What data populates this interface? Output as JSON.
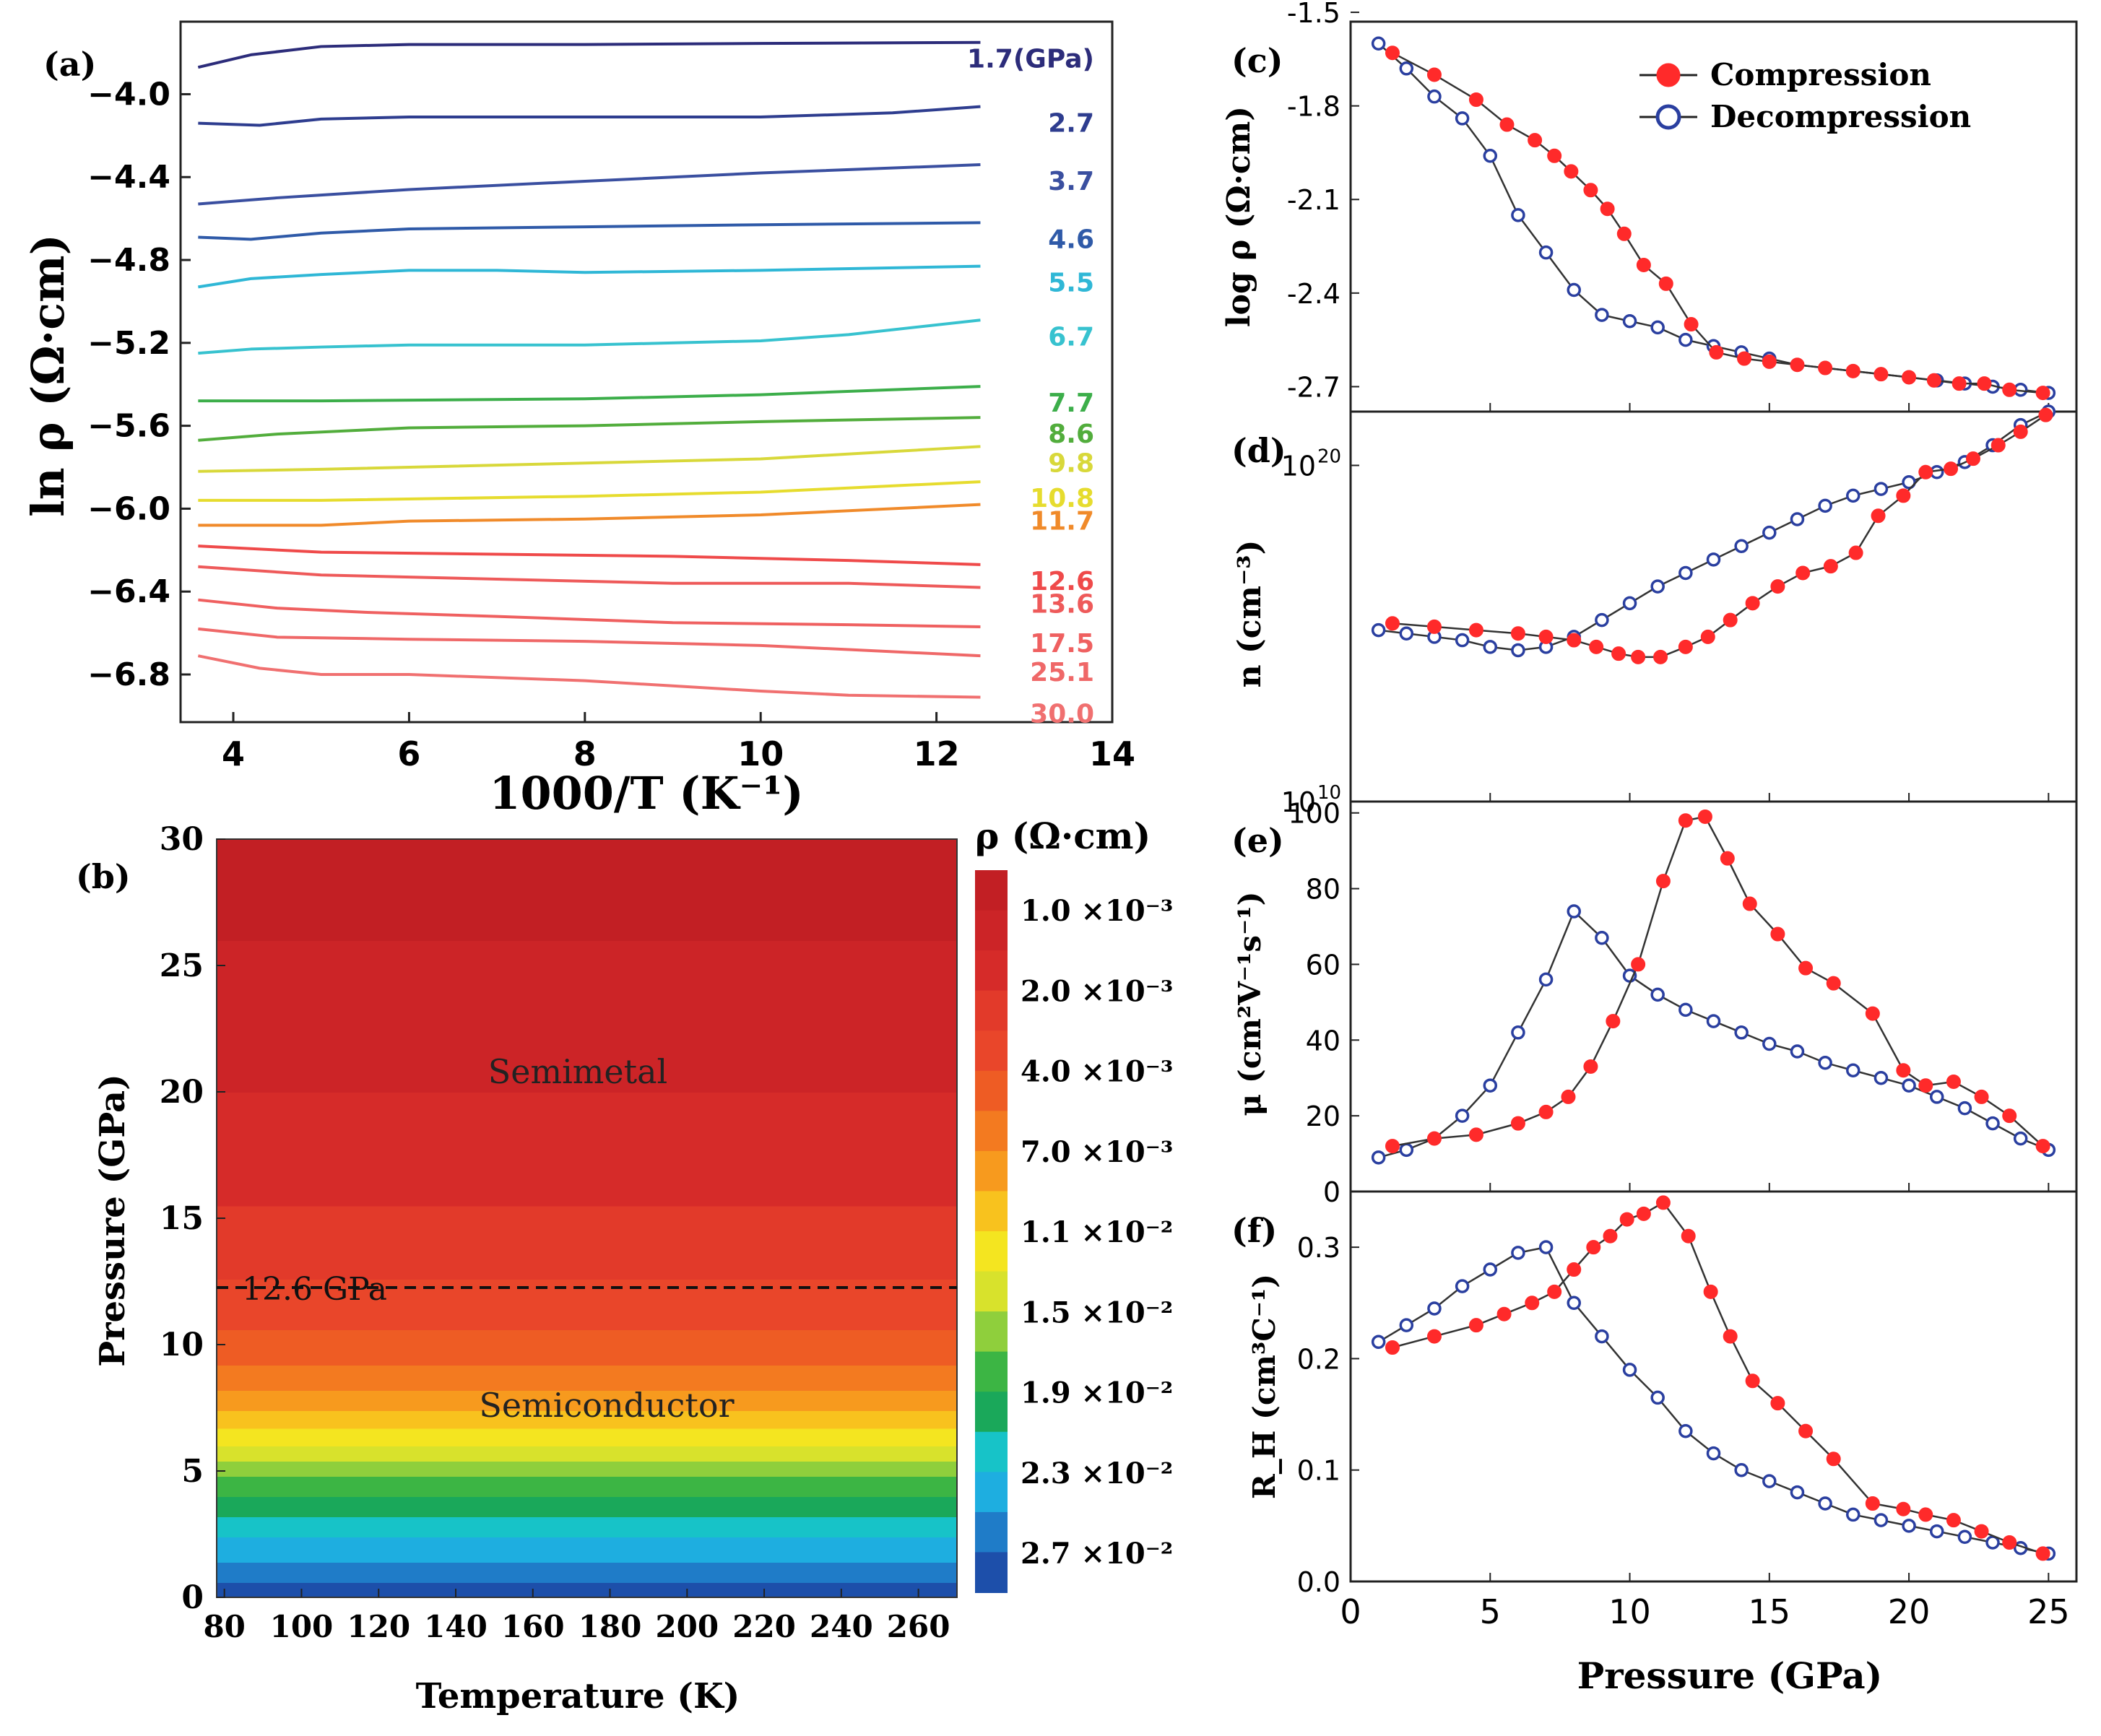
{
  "panels": {
    "a": "(a)",
    "b": "(b)",
    "c": "(c)",
    "d": "(d)",
    "e": "(e)",
    "f": "(f)"
  },
  "chart_data": [
    {
      "id": "a",
      "type": "line",
      "xlabel": "1000/T (K⁻¹)",
      "ylabel": "ln ρ (Ω·cm)",
      "xlim": [
        3.4,
        14
      ],
      "ylim": [
        -7.03,
        -3.65
      ],
      "xticks": [
        "4",
        "6",
        "8",
        "10",
        "12",
        "14"
      ],
      "yticks": [
        "−4.0",
        "−4.4",
        "−4.8",
        "−5.2",
        "−5.6",
        "−6.0",
        "−6.4",
        "−6.8"
      ],
      "ytick_values": [
        -4.0,
        -4.4,
        -4.8,
        -5.2,
        -5.6,
        -6.0,
        -6.4,
        -6.8
      ],
      "series": [
        {
          "name": "1.7(GPa)",
          "color": "#2c2c7a",
          "x": [
            3.6,
            4.2,
            5,
            6,
            8,
            10,
            12.5
          ],
          "y": [
            -3.87,
            -3.81,
            -3.77,
            -3.76,
            -3.76,
            -3.755,
            -3.75
          ]
        },
        {
          "name": "2.7",
          "color": "#2e3d8f",
          "x": [
            3.6,
            4.3,
            5,
            6,
            8,
            10,
            11.5,
            12.5
          ],
          "y": [
            -4.14,
            -4.15,
            -4.12,
            -4.11,
            -4.11,
            -4.11,
            -4.09,
            -4.06
          ]
        },
        {
          "name": "3.7",
          "color": "#3a4fa0",
          "x": [
            3.6,
            4.5,
            6,
            8,
            10,
            12.5
          ],
          "y": [
            -4.53,
            -4.5,
            -4.46,
            -4.42,
            -4.38,
            -4.34
          ]
        },
        {
          "name": "4.6",
          "color": "#2f5aa8",
          "x": [
            3.6,
            4.2,
            5,
            6,
            8,
            10,
            12.5
          ],
          "y": [
            -4.69,
            -4.7,
            -4.67,
            -4.65,
            -4.64,
            -4.63,
            -4.62
          ]
        },
        {
          "name": "5.5",
          "color": "#2fb7d6",
          "x": [
            3.6,
            4.2,
            5,
            6,
            7,
            8,
            10,
            12.5
          ],
          "y": [
            -4.93,
            -4.89,
            -4.87,
            -4.85,
            -4.85,
            -4.86,
            -4.85,
            -4.83
          ]
        },
        {
          "name": "6.7",
          "color": "#37c2cf",
          "x": [
            3.6,
            4.2,
            5,
            6,
            8,
            10,
            11,
            12.5
          ],
          "y": [
            -5.25,
            -5.23,
            -5.22,
            -5.21,
            -5.21,
            -5.19,
            -5.16,
            -5.09
          ]
        },
        {
          "name": "7.7",
          "color": "#3cae4a",
          "x": [
            3.6,
            5,
            8,
            10,
            12.5
          ],
          "y": [
            -5.48,
            -5.48,
            -5.47,
            -5.45,
            -5.41
          ]
        },
        {
          "name": "8.6",
          "color": "#52ad3c",
          "x": [
            3.6,
            4.5,
            6,
            8,
            10,
            12.5
          ],
          "y": [
            -5.67,
            -5.64,
            -5.61,
            -5.6,
            -5.58,
            -5.56
          ]
        },
        {
          "name": "9.8",
          "color": "#d8d83a",
          "x": [
            3.6,
            5,
            8,
            10,
            12.5
          ],
          "y": [
            -5.82,
            -5.81,
            -5.78,
            -5.76,
            -5.7
          ]
        },
        {
          "name": "10.8",
          "color": "#e6dc2e",
          "x": [
            3.6,
            5,
            8,
            10,
            12.5
          ],
          "y": [
            -5.96,
            -5.96,
            -5.94,
            -5.92,
            -5.87
          ]
        },
        {
          "name": "11.7",
          "color": "#f08a2a",
          "x": [
            3.6,
            5,
            6,
            8,
            10,
            12.5
          ],
          "y": [
            -6.08,
            -6.08,
            -6.06,
            -6.05,
            -6.03,
            -5.98
          ]
        },
        {
          "name": "12.6",
          "color": "#ef4a4a",
          "x": [
            3.6,
            5,
            7,
            9,
            11,
            12.5
          ],
          "y": [
            -6.18,
            -6.21,
            -6.22,
            -6.23,
            -6.25,
            -6.27
          ]
        },
        {
          "name": "13.6",
          "color": "#ee5a5a",
          "x": [
            3.6,
            5,
            7,
            9,
            11,
            12.5
          ],
          "y": [
            -6.28,
            -6.32,
            -6.34,
            -6.36,
            -6.36,
            -6.38
          ]
        },
        {
          "name": "17.5",
          "color": "#ef6060",
          "x": [
            3.6,
            4.5,
            5.5,
            7,
            9,
            11,
            12.5
          ],
          "y": [
            -6.44,
            -6.48,
            -6.5,
            -6.52,
            -6.55,
            -6.56,
            -6.57
          ]
        },
        {
          "name": "25.1",
          "color": "#ef6868",
          "x": [
            3.6,
            4.5,
            6,
            8,
            10,
            11,
            12.5
          ],
          "y": [
            -6.58,
            -6.62,
            -6.63,
            -6.64,
            -6.66,
            -6.68,
            -6.71
          ]
        },
        {
          "name": "30.0",
          "color": "#f07070",
          "x": [
            3.6,
            4.3,
            5,
            6,
            8,
            10,
            11,
            12.5
          ],
          "y": [
            -6.71,
            -6.77,
            -6.8,
            -6.8,
            -6.83,
            -6.88,
            -6.9,
            -6.91
          ]
        }
      ]
    },
    {
      "id": "b",
      "type": "heatmap",
      "xlabel": "Temperature (K)",
      "ylabel": "Pressure (GPa)",
      "xlim": [
        78,
        270
      ],
      "ylim": [
        0,
        30
      ],
      "xticks": [
        "80",
        "100",
        "120",
        "140",
        "160",
        "180",
        "200",
        "220",
        "240",
        "260"
      ],
      "yticks": [
        "0",
        "5",
        "10",
        "15",
        "20",
        "25",
        "30"
      ],
      "colorbar_title": "ρ (Ω·cm)",
      "colorbar_labels": [
        "1.0 ×10⁻³",
        "2.0 ×10⁻³",
        "4.0 ×10⁻³",
        "7.0 ×10⁻³",
        "1.1 ×10⁻²",
        "1.5 ×10⁻²",
        "1.9 ×10⁻²",
        "2.3 ×10⁻²",
        "2.7 ×10⁻²"
      ],
      "annotations": [
        "Semimetal",
        "Semiconductor",
        "12.6 GPa"
      ],
      "dashed_line_pressure": 12.6,
      "bands": [
        {
          "p": [
            0,
            0.6
          ],
          "color": "#1d4faa"
        },
        {
          "p": [
            0.6,
            1.4
          ],
          "color": "#1f7cc8"
        },
        {
          "p": [
            1.4,
            2.4
          ],
          "color": "#1eaee0"
        },
        {
          "p": [
            2.4,
            3.2
          ],
          "color": "#17c3c8"
        },
        {
          "p": [
            3.2,
            4.0
          ],
          "color": "#1aa85a"
        },
        {
          "p": [
            4.0,
            4.8
          ],
          "color": "#3cb544"
        },
        {
          "p": [
            4.8,
            5.4
          ],
          "color": "#8fcf3c"
        },
        {
          "p": [
            5.4,
            6.0
          ],
          "color": "#d8e22c"
        },
        {
          "p": [
            6.0,
            6.7
          ],
          "color": "#f4e520"
        },
        {
          "p": [
            6.7,
            7.4
          ],
          "color": "#f8c21e"
        },
        {
          "p": [
            7.4,
            8.2
          ],
          "color": "#f79a1e"
        },
        {
          "p": [
            8.2,
            9.2
          ],
          "color": "#f37a20"
        },
        {
          "p": [
            9.2,
            10.6
          ],
          "color": "#ee5c24"
        },
        {
          "p": [
            10.6,
            12.6
          ],
          "color": "#e9462a"
        },
        {
          "p": [
            12.6,
            15.5
          ],
          "color": "#e23a2a"
        },
        {
          "p": [
            15.5,
            20
          ],
          "color": "#d62b29"
        },
        {
          "p": [
            20,
            26
          ],
          "color": "#cc2427"
        },
        {
          "p": [
            26,
            30
          ],
          "color": "#c21f24"
        }
      ]
    },
    {
      "id": "c",
      "type": "line",
      "ylabel": "log ρ (Ω·cm)",
      "xlim": [
        0,
        26
      ],
      "ylim": [
        -2.78,
        -1.53
      ],
      "yticks": [
        "-1.5",
        "-1.8",
        "-2.1",
        "-2.4",
        "-2.7"
      ],
      "ytick_values": [
        -1.5,
        -1.8,
        -2.1,
        -2.4,
        -2.7
      ],
      "legend": {
        "position": "top-right",
        "entries": [
          "Compression",
          "Decompression"
        ]
      },
      "series": [
        {
          "name": "Compression",
          "color": "#ff2a2a",
          "marker": "filled",
          "x": [
            1.5,
            3,
            4.5,
            5.6,
            6.6,
            7.3,
            7.9,
            8.6,
            9.2,
            9.8,
            10.5,
            11.3,
            12.2,
            13.1,
            14.1,
            15.0,
            16.0,
            17.0,
            18.0,
            19.0,
            20.0,
            20.9,
            21.8,
            22.7,
            23.6,
            24.8
          ],
          "y": [
            -1.63,
            -1.7,
            -1.78,
            -1.86,
            -1.91,
            -1.96,
            -2.01,
            -2.07,
            -2.13,
            -2.21,
            -2.31,
            -2.37,
            -2.5,
            -2.59,
            -2.61,
            -2.62,
            -2.63,
            -2.64,
            -2.65,
            -2.66,
            -2.67,
            -2.68,
            -2.69,
            -2.69,
            -2.71,
            -2.72
          ]
        },
        {
          "name": "Decompression",
          "color": "#2a3fa0",
          "marker": "open",
          "x": [
            1,
            2,
            3,
            4,
            5,
            6,
            7,
            8,
            9,
            10,
            11,
            12,
            13,
            14,
            15,
            16,
            17,
            18,
            19,
            20,
            21,
            22,
            23,
            24,
            25
          ],
          "y": [
            -1.6,
            -1.68,
            -1.77,
            -1.84,
            -1.96,
            -2.15,
            -2.27,
            -2.39,
            -2.47,
            -2.49,
            -2.51,
            -2.55,
            -2.57,
            -2.59,
            -2.61,
            -2.63,
            -2.64,
            -2.65,
            -2.66,
            -2.67,
            -2.68,
            -2.69,
            -2.7,
            -2.71,
            -2.72
          ]
        }
      ]
    },
    {
      "id": "d",
      "type": "line",
      "ylabel": "n (cm⁻³)",
      "xlim": [
        0,
        26
      ],
      "ylim": [
        10,
        21.6
      ],
      "yscale": "log",
      "ytick_values": [
        10,
        20
      ],
      "yticks_base": "10",
      "yticks_exp": [
        "10",
        "20"
      ],
      "series": [
        {
          "name": "Compression",
          "color": "#ff2a2a",
          "marker": "filled",
          "x": [
            1.5,
            3,
            4.5,
            6,
            7,
            8,
            8.8,
            9.6,
            10.3,
            11.1,
            12,
            12.8,
            13.6,
            14.4,
            15.3,
            16.2,
            17.2,
            18.1,
            18.9,
            19.8,
            20.6,
            21.5,
            22.3,
            23.2,
            24.0,
            24.9
          ],
          "y": [
            15.3,
            15.2,
            15.1,
            15.0,
            14.9,
            14.8,
            14.6,
            14.4,
            14.3,
            14.3,
            14.6,
            14.9,
            15.4,
            15.9,
            16.4,
            16.8,
            17.0,
            17.4,
            18.5,
            19.1,
            19.8,
            19.9,
            20.2,
            20.6,
            21.0,
            21.5
          ]
        },
        {
          "name": "Decompression",
          "color": "#2a3fa0",
          "marker": "open",
          "x": [
            1,
            2,
            3,
            4,
            5,
            6,
            7,
            8,
            9,
            10,
            11,
            12,
            13,
            14,
            15,
            16,
            17,
            18,
            19,
            20,
            21,
            22,
            23,
            24,
            25
          ],
          "y": [
            15.1,
            15.0,
            14.9,
            14.8,
            14.6,
            14.5,
            14.6,
            14.9,
            15.4,
            15.9,
            16.4,
            16.8,
            17.2,
            17.6,
            18.0,
            18.4,
            18.8,
            19.1,
            19.3,
            19.5,
            19.8,
            20.1,
            20.6,
            21.2,
            21.6
          ]
        }
      ]
    },
    {
      "id": "e",
      "type": "line",
      "ylabel": "μ (cm²V⁻¹s⁻¹)",
      "xlim": [
        0,
        26
      ],
      "ylim": [
        0,
        103
      ],
      "yticks": [
        "0",
        "20",
        "40",
        "60",
        "80",
        "100"
      ],
      "ytick_values": [
        0,
        20,
        40,
        60,
        80,
        100
      ],
      "series": [
        {
          "name": "Compression",
          "color": "#ff2a2a",
          "marker": "filled",
          "x": [
            1.5,
            3,
            4.5,
            6,
            7,
            7.8,
            8.6,
            9.4,
            10.3,
            11.2,
            12,
            12.7,
            13.5,
            14.3,
            15.3,
            16.3,
            17.3,
            18.7,
            19.8,
            20.6,
            21.6,
            22.6,
            23.6,
            24.8
          ],
          "y": [
            12,
            14,
            15,
            18,
            21,
            25,
            33,
            45,
            60,
            82,
            98,
            99,
            88,
            76,
            68,
            59,
            55,
            47,
            32,
            28,
            29,
            25,
            20,
            12
          ]
        },
        {
          "name": "Decompression",
          "color": "#2a3fa0",
          "marker": "open",
          "x": [
            1,
            2,
            3,
            4,
            5,
            6,
            7,
            8,
            9,
            10,
            11,
            12,
            13,
            14,
            15,
            16,
            17,
            18,
            19,
            20,
            21,
            22,
            23,
            24,
            25
          ],
          "y": [
            9,
            11,
            14,
            20,
            28,
            42,
            56,
            74,
            67,
            57,
            52,
            48,
            45,
            42,
            39,
            37,
            34,
            32,
            30,
            28,
            25,
            22,
            18,
            14,
            11
          ]
        }
      ]
    },
    {
      "id": "f",
      "type": "line",
      "xlabel": "Pressure (GPa)",
      "ylabel": "R_H (cm³C⁻¹)",
      "xlim": [
        0,
        26
      ],
      "ylim": [
        0,
        0.35
      ],
      "xticks": [
        "0",
        "5",
        "10",
        "15",
        "20",
        "25"
      ],
      "xtick_values": [
        0,
        5,
        10,
        15,
        20,
        25
      ],
      "yticks": [
        "0.0",
        "0.1",
        "0.2",
        "0.3"
      ],
      "ytick_values": [
        0,
        0.1,
        0.2,
        0.3
      ],
      "series": [
        {
          "name": "Compression",
          "color": "#ff2a2a",
          "marker": "filled",
          "x": [
            1.5,
            3,
            4.5,
            5.5,
            6.5,
            7.3,
            8,
            8.7,
            9.3,
            9.9,
            10.5,
            11.2,
            12.1,
            12.9,
            13.6,
            14.4,
            15.3,
            16.3,
            17.3,
            18.7,
            19.8,
            20.6,
            21.6,
            22.6,
            23.6,
            24.8
          ],
          "y": [
            0.21,
            0.22,
            0.23,
            0.24,
            0.25,
            0.26,
            0.28,
            0.3,
            0.31,
            0.325,
            0.33,
            0.34,
            0.31,
            0.26,
            0.22,
            0.18,
            0.16,
            0.135,
            0.11,
            0.07,
            0.065,
            0.06,
            0.055,
            0.045,
            0.035,
            0.025
          ]
        },
        {
          "name": "Decompression",
          "color": "#2a3fa0",
          "marker": "open",
          "x": [
            1,
            2,
            3,
            4,
            5,
            6,
            7,
            8,
            9,
            10,
            11,
            12,
            13,
            14,
            15,
            16,
            17,
            18,
            19,
            20,
            21,
            22,
            23,
            24,
            25
          ],
          "y": [
            0.215,
            0.23,
            0.245,
            0.265,
            0.28,
            0.295,
            0.3,
            0.25,
            0.22,
            0.19,
            0.165,
            0.135,
            0.115,
            0.1,
            0.09,
            0.08,
            0.07,
            0.06,
            0.055,
            0.05,
            0.045,
            0.04,
            0.035,
            0.03,
            0.025
          ]
        }
      ]
    }
  ]
}
